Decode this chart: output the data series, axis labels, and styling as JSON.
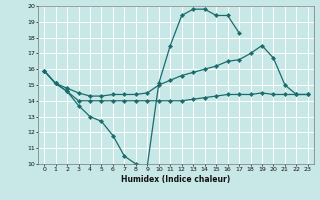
{
  "xlabel": "Humidex (Indice chaleur)",
  "background_color": "#c8e8e8",
  "grid_color": "#ffffff",
  "line_color": "#1a6b6b",
  "xlim": [
    -0.5,
    23.5
  ],
  "ylim": [
    10,
    20
  ],
  "xticks": [
    0,
    1,
    2,
    3,
    4,
    5,
    6,
    7,
    8,
    9,
    10,
    11,
    12,
    13,
    14,
    15,
    16,
    17,
    18,
    19,
    20,
    21,
    22,
    23
  ],
  "yticks": [
    10,
    11,
    12,
    13,
    14,
    15,
    16,
    17,
    18,
    19,
    20
  ],
  "s1_x": [
    0,
    1,
    2,
    3,
    4,
    5,
    6,
    7,
    8,
    9,
    10,
    11,
    12,
    13,
    14,
    15,
    16,
    17
  ],
  "s1_y": [
    15.9,
    15.1,
    14.6,
    13.7,
    13.0,
    12.7,
    11.8,
    10.5,
    10.0,
    9.9,
    15.1,
    17.5,
    19.4,
    19.8,
    19.8,
    19.4,
    19.4,
    18.3
  ],
  "s2_x": [
    0,
    1,
    2,
    3,
    4,
    5,
    6,
    7,
    8,
    9,
    10,
    11,
    12,
    13,
    14,
    15,
    16,
    17,
    18,
    19,
    20,
    21,
    22,
    23
  ],
  "s2_y": [
    15.9,
    15.1,
    14.8,
    14.5,
    14.3,
    14.3,
    14.4,
    14.4,
    14.4,
    14.5,
    15.0,
    15.3,
    15.6,
    15.8,
    16.0,
    16.2,
    16.5,
    16.6,
    17.0,
    17.5,
    16.7,
    15.0,
    14.4,
    14.4
  ],
  "s3_x": [
    0,
    1,
    2,
    3,
    4,
    5,
    6,
    7,
    8,
    9,
    10,
    11,
    12,
    13,
    14,
    15,
    16,
    17,
    18,
    19,
    20,
    21,
    22,
    23
  ],
  "s3_y": [
    15.9,
    15.1,
    14.6,
    14.0,
    14.0,
    14.0,
    14.0,
    14.0,
    14.0,
    14.0,
    14.0,
    14.0,
    14.0,
    14.1,
    14.2,
    14.3,
    14.4,
    14.4,
    14.4,
    14.5,
    14.4,
    14.4,
    14.4,
    14.4
  ]
}
